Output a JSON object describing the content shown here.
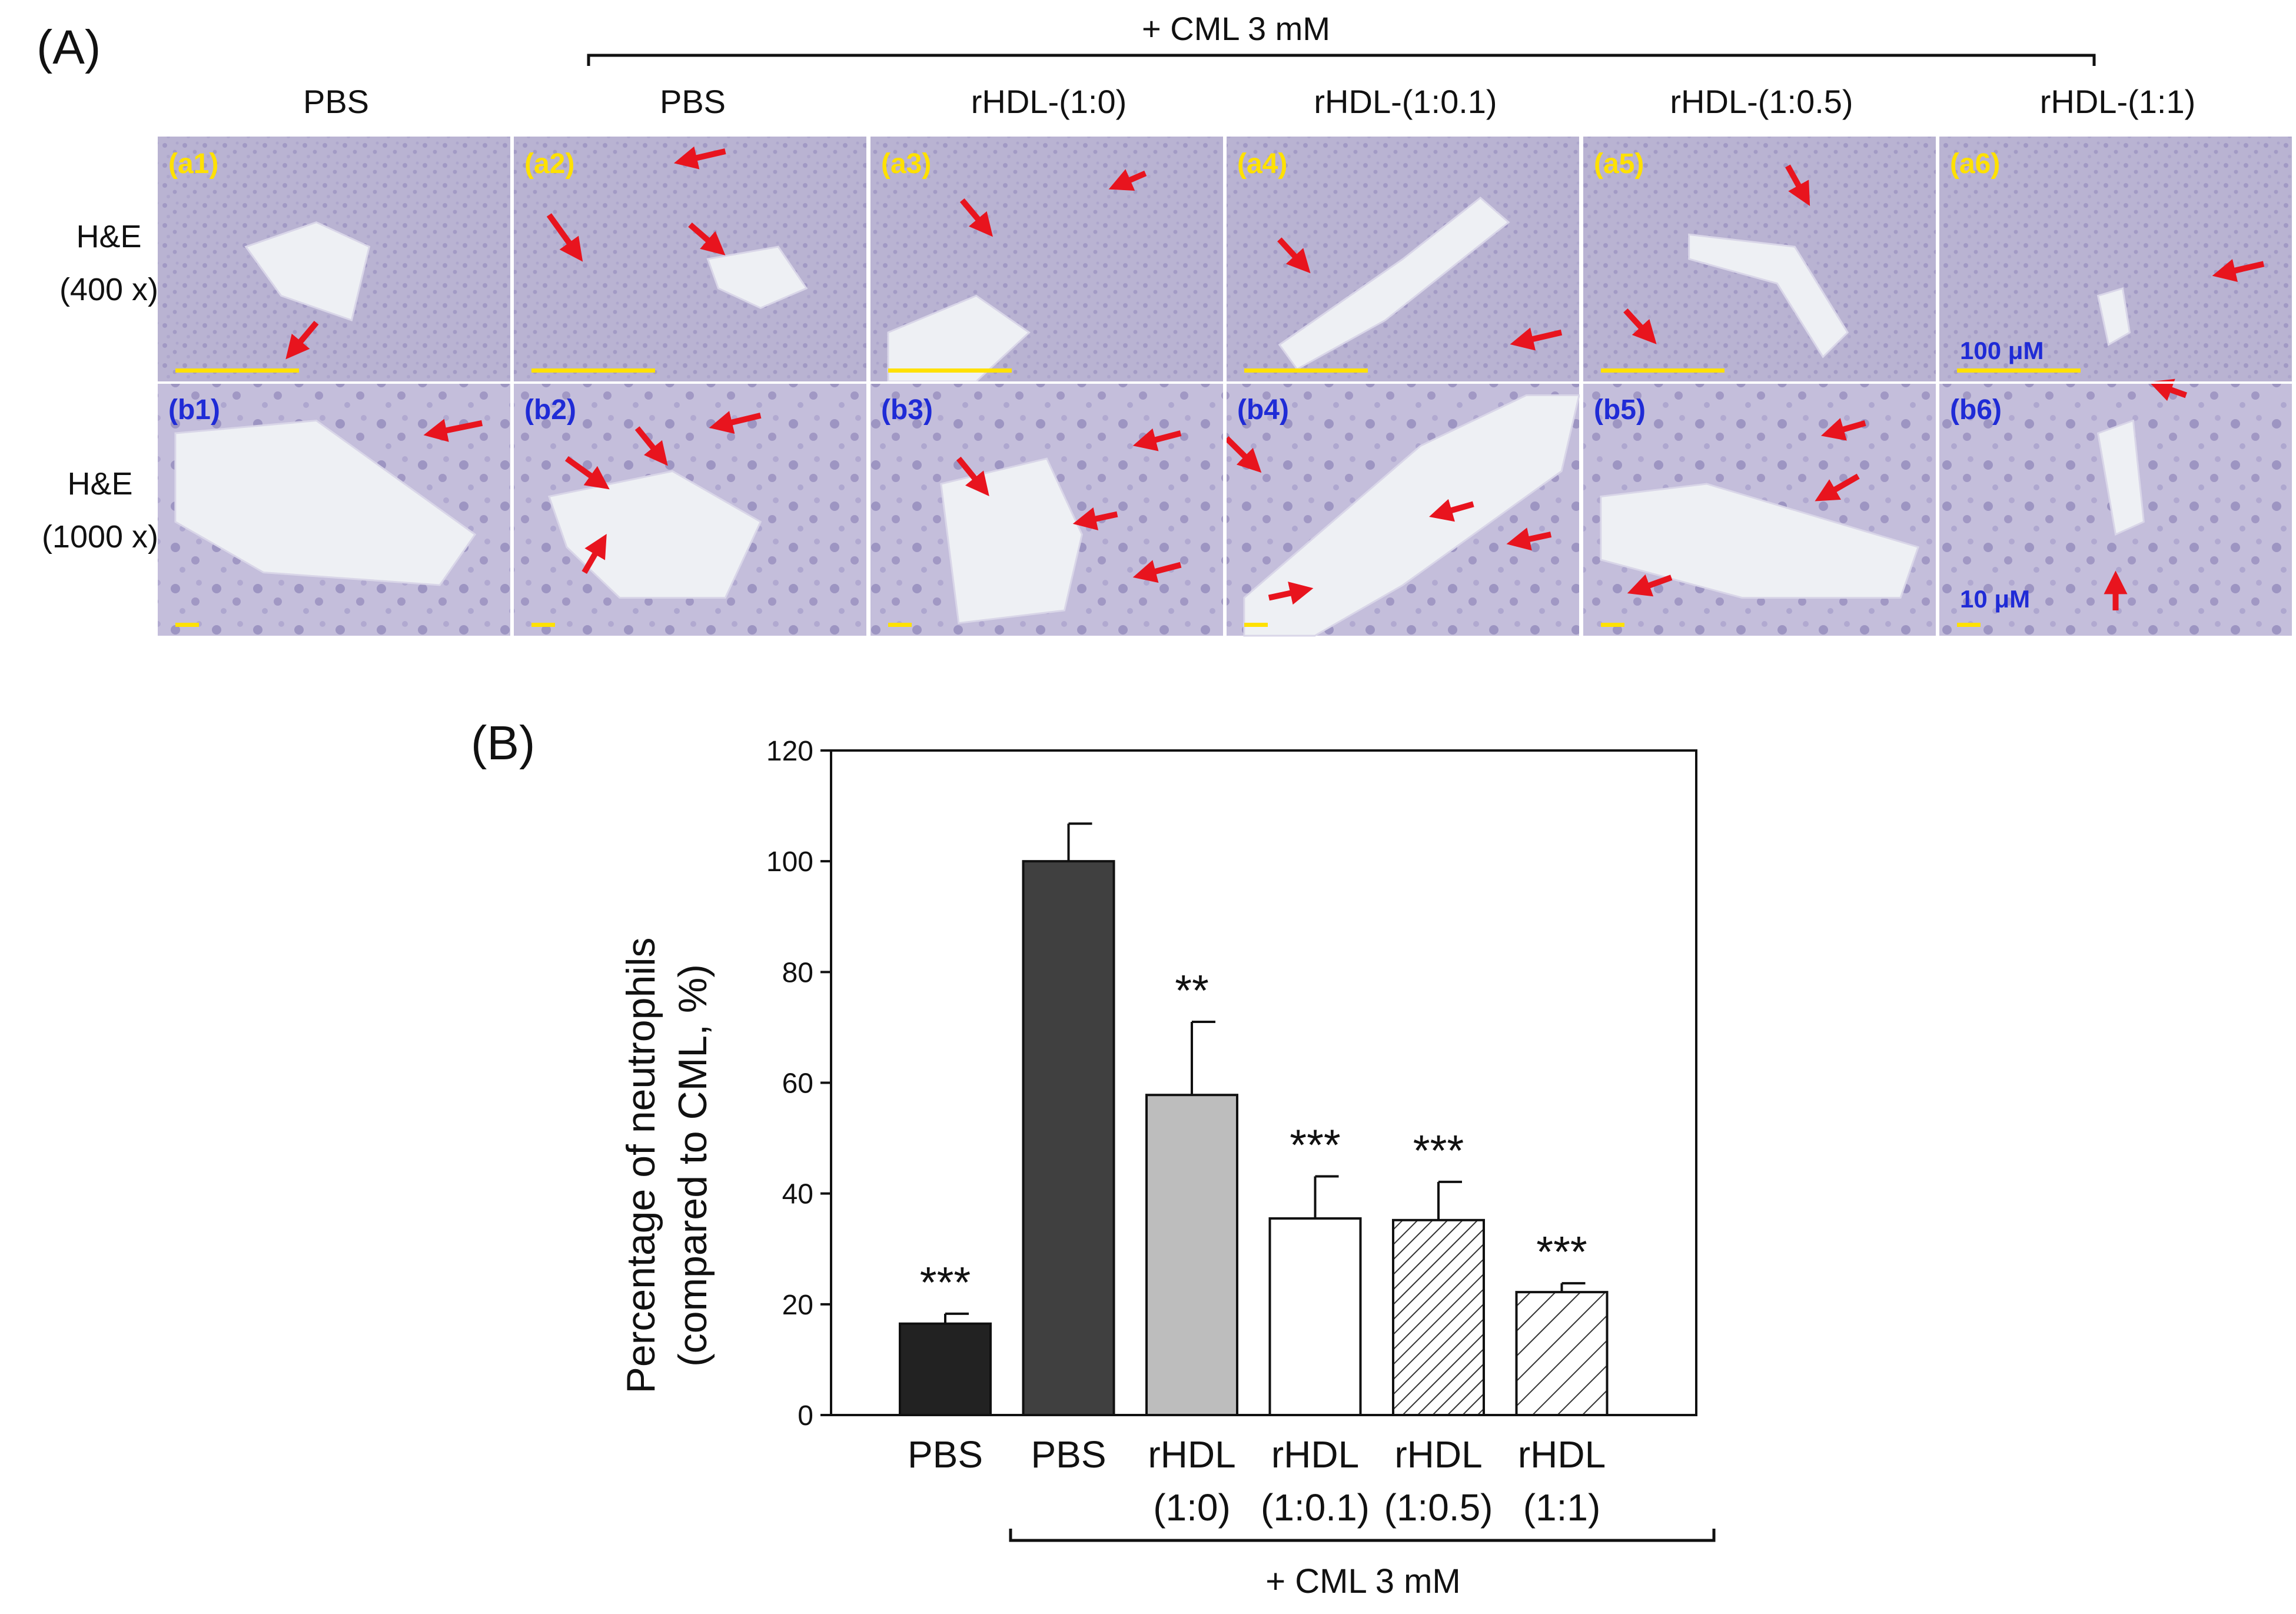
{
  "panel_a": {
    "label": "(A)",
    "group_label": "+ CML 3 mM",
    "columns": [
      "PBS",
      "PBS",
      "rHDL-(1:0)",
      "rHDL-(1:0.1)",
      "rHDL-(1:0.5)",
      "rHDL-(1:1)"
    ],
    "rows": [
      {
        "label_line1": "H&E",
        "label_line2": "(400 x)",
        "tiles": [
          "(a1)",
          "(a2)",
          "(a3)",
          "(a4)",
          "(a5)",
          "(a6)"
        ],
        "scale_text": "100 μM"
      },
      {
        "label_line1": "H&E",
        "label_line2": "(1000 x)",
        "tiles": [
          "(b1)",
          "(b2)",
          "(b3)",
          "(b4)",
          "(b5)",
          "(b6)"
        ],
        "scale_text": "10 μM"
      }
    ],
    "colors": {
      "tissue": "#b9b3d2",
      "tissue_dark": "#9a90bf",
      "lumen": "#eef0f4",
      "arrow": "#e8141e",
      "row1_label": "#ffe100",
      "row2_label": "#1f2bd6",
      "scalebar": "#ffe100"
    }
  },
  "panel_b": {
    "label": "(B)",
    "group_label": "+ CML 3 mM",
    "chart_data": {
      "type": "bar",
      "categories": [
        "PBS",
        "PBS",
        "rHDL (1:0)",
        "rHDL (1:0.1)",
        "rHDL (1:0.5)",
        "rHDL (1:1)"
      ],
      "category_lines": [
        [
          "PBS"
        ],
        [
          "PBS"
        ],
        [
          "rHDL",
          "(1:0)"
        ],
        [
          "rHDL",
          "(1:0.1)"
        ],
        [
          "rHDL",
          "(1:0.5)"
        ],
        [
          "rHDL",
          "(1:1)"
        ]
      ],
      "values": [
        16.5,
        100,
        57.8,
        35.5,
        35.2,
        22.2
      ],
      "errors": [
        1.8,
        6.8,
        13.2,
        7.6,
        6.9,
        1.6
      ],
      "significance": [
        "***",
        "",
        "**",
        "***",
        "***",
        "***"
      ],
      "fills": [
        "solid-black",
        "solid-darkgray",
        "solid-lightgray",
        "white",
        "hatch-dense",
        "hatch-sparse"
      ],
      "colors": {
        "black": "#222222",
        "darkgray": "#404040",
        "lightgray": "#bdbdbd",
        "white": "#ffffff"
      },
      "ylabel_line1": "Percentage of neutrophils",
      "ylabel_line2": "(compared to CML, %)",
      "xlabel": "",
      "ylim": [
        0,
        120
      ],
      "yticks": [
        0,
        20,
        40,
        60,
        80,
        100,
        120
      ],
      "grid": false,
      "legend": "none"
    }
  }
}
